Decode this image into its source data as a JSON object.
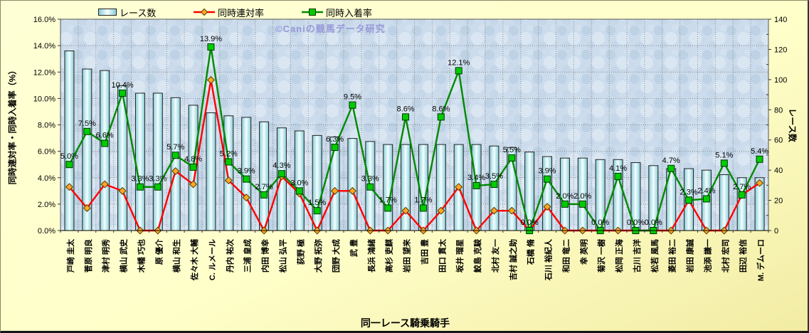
{
  "watermark": "©Caniの競馬データ研究",
  "legend": [
    {
      "label": "レース数",
      "swatch": "bar-swatch"
    },
    {
      "label": "同時連対率",
      "swatch": "red-line-diamond-swatch"
    },
    {
      "label": "同時入着率",
      "swatch": "green-line-square-swatch"
    }
  ],
  "colors": {
    "background": "#FFFFCC",
    "plot_bg": "#CCDCEC",
    "bar_edge": "#222222",
    "bar_side": "#86CCD6",
    "bar_center": "#F4FEFF",
    "red_line": "#FF0000",
    "diamond_fill": "#FFA826",
    "diamond_edge": "#5B3A00",
    "green_line": "#008A00",
    "square_fill": "#00CC00",
    "square_edge": "#003300",
    "grid": "#8C8C8C",
    "axis": "#333333",
    "watermark": "#9898D8"
  },
  "chart_data": {
    "type": "bar+line combo",
    "xlabel": "同一レース騎乗騎手",
    "ylabel_left": "同時連対率・同時入着率（%）",
    "ylabel_right": "レース数",
    "left_axis": {
      "min": 0,
      "max": 16,
      "tick_labels": [
        "0.0%",
        "2.0%",
        "4.0%",
        "6.0%",
        "8.0%",
        "10.0%",
        "12.0%",
        "14.0%",
        "16.0%"
      ]
    },
    "right_axis": {
      "min": 0,
      "max": 140,
      "tick_labels": [
        "0",
        "20",
        "40",
        "60",
        "80",
        "100",
        "120",
        "140"
      ]
    },
    "grid": "both, dotted",
    "legend_position": "top",
    "categories": [
      "戸崎 圭太",
      "菅原 明良",
      "津村 明秀",
      "横山 武史",
      "木幡 巧也",
      "原 優介",
      "横山 和生",
      "佐々木 大輔",
      "C. ルメール",
      "丹内 祐次",
      "三浦 皇成",
      "内田 博幸",
      "松山 弘平",
      "荻野 極",
      "大野 拓弥",
      "団野 大成",
      "武 豊",
      "長浜 鴻緒",
      "高杉 吏麒",
      "岩田 望来",
      "吉田 豊",
      "田口 貫太",
      "坂井 瑠星",
      "鮫島 克駿",
      "北村 友一",
      "吉村 誠之助",
      "石橋 脩",
      "石川 裕紀人",
      "和田 竜二",
      "幸 英明",
      "菊沢 一樹",
      "松岡 正海",
      "古川 吉洋",
      "松若 風馬",
      "菱田 裕二",
      "岩田 康誠",
      "池添 謙一",
      "北村 宏司",
      "田辺 裕信",
      "M. デムーロ"
    ],
    "series": [
      {
        "name": "レース数",
        "type": "bar",
        "axis": "right",
        "values": [
          119,
          107,
          106,
          96,
          91,
          91,
          88,
          83,
          78,
          76,
          75,
          72,
          68,
          66,
          63,
          62,
          61,
          59,
          57,
          57,
          57,
          57,
          57,
          57,
          56,
          55,
          52,
          49,
          48,
          48,
          47,
          47,
          45,
          43,
          41,
          41,
          40,
          37,
          35,
          35
        ]
      },
      {
        "name": "同時連対率",
        "type": "line",
        "marker": "diamond",
        "axis": "left",
        "values": [
          3.3,
          1.7,
          3.5,
          3.0,
          0.0,
          0.0,
          4.5,
          3.5,
          11.4,
          3.8,
          2.5,
          0.0,
          4.1,
          2.8,
          0.0,
          3.0,
          3.0,
          0.0,
          0.0,
          1.5,
          0.0,
          1.5,
          3.3,
          0.0,
          1.5,
          1.5,
          0.0,
          1.8,
          0.0,
          0.0,
          0.0,
          0.0,
          0.0,
          0.0,
          0.0,
          2.3,
          0.0,
          0.0,
          2.7,
          3.6
        ]
      },
      {
        "name": "同時入着率",
        "type": "line",
        "marker": "square",
        "axis": "left",
        "values": [
          5.0,
          7.5,
          6.6,
          10.4,
          3.3,
          3.3,
          5.7,
          4.8,
          13.9,
          5.2,
          3.9,
          2.7,
          4.3,
          3.0,
          1.5,
          6.3,
          9.5,
          3.3,
          1.7,
          8.6,
          1.7,
          8.6,
          12.1,
          3.4,
          3.5,
          5.5,
          0.0,
          3.9,
          2.0,
          2.0,
          0.0,
          4.1,
          0.0,
          0.0,
          4.7,
          2.3,
          2.4,
          5.1,
          2.7,
          5.4
        ],
        "labels": [
          "5.0%",
          "7.5%",
          "6.6%",
          "10.4%",
          "3.3%",
          "3.3%",
          "5.7%",
          "4.8%",
          "13.9%",
          "5.2%",
          "3.9%",
          "2.7%",
          "4.3%",
          "3.0%",
          "1.5%",
          "6.3%",
          "9.5%",
          "3.3%",
          "1.7%",
          "8.6%",
          "1.7%",
          "8.6%",
          "12.1%",
          "3.4%",
          "3.5%",
          "5.5%",
          "0.0%",
          "3.9%",
          "2.0%",
          "2.0%",
          "0.0%",
          "4.1%",
          "0.0%",
          "0.0%",
          "4.7%",
          "2.3%",
          "2.4%",
          "5.1%",
          "2.7%",
          "5.4%"
        ]
      }
    ]
  }
}
